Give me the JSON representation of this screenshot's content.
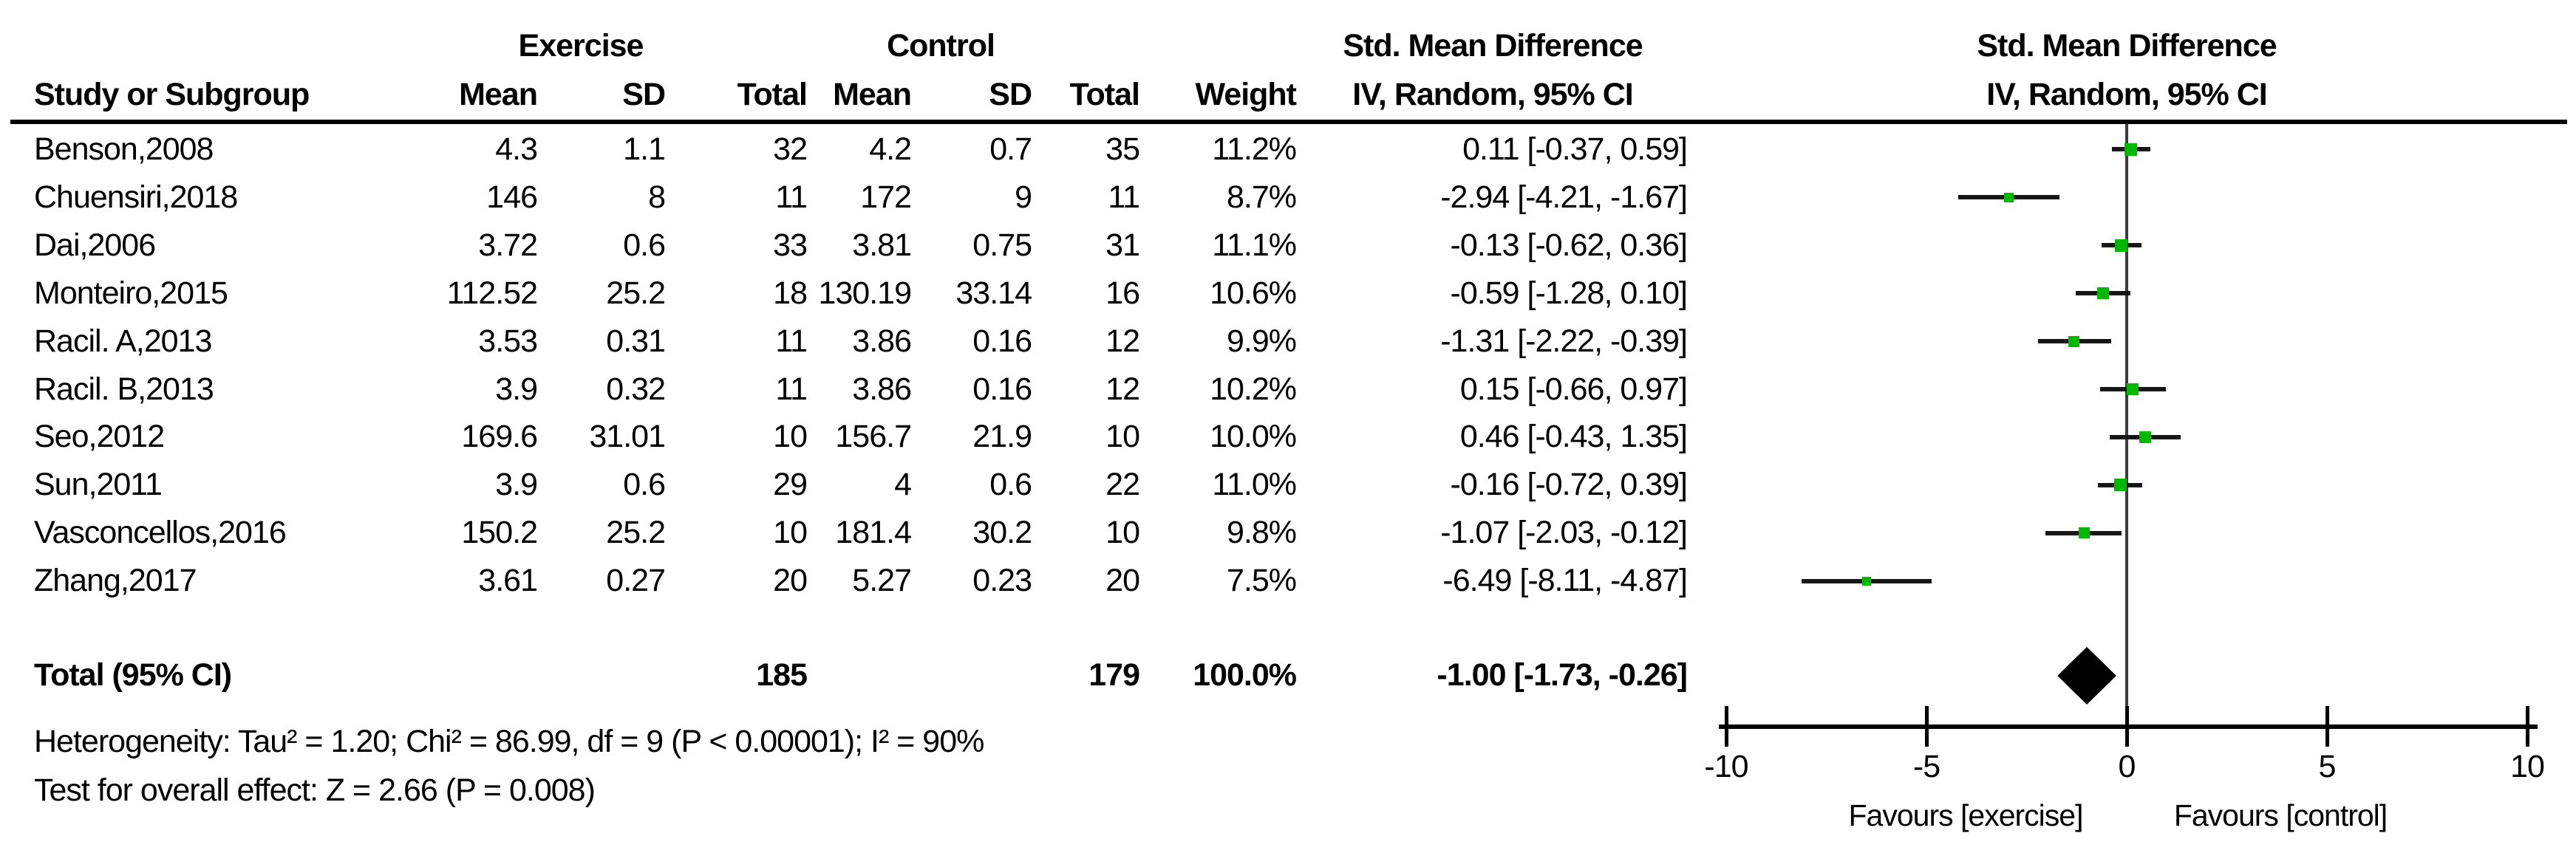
{
  "header": {
    "group_exercise": "Exercise",
    "group_control": "Control",
    "smd_text_title": "Std. Mean Difference",
    "smd_plot_title": "Std. Mean Difference",
    "col_study": "Study or Subgroup",
    "col_mean_ex": "Mean",
    "col_sd_ex": "SD",
    "col_total_ex": "Total",
    "col_mean_c": "Mean",
    "col_sd_c": "SD",
    "col_total_c": "Total",
    "col_weight": "Weight",
    "col_ci_text": "IV, Random, 95% CI",
    "col_ci_plot": "IV, Random, 95% CI"
  },
  "studies": [
    {
      "name": "Benson,2008",
      "ex_mean": "4.3",
      "ex_sd": "1.1",
      "ex_total": "32",
      "c_mean": "4.2",
      "c_sd": "0.7",
      "c_total": "35",
      "weight": "11.2%",
      "ci": "0.11 [-0.37, 0.59]",
      "est": 0.11,
      "lo": -0.37,
      "hi": 0.59
    },
    {
      "name": "Chuensiri,2018",
      "ex_mean": "146",
      "ex_sd": "8",
      "ex_total": "11",
      "c_mean": "172",
      "c_sd": "9",
      "c_total": "11",
      "weight": "8.7%",
      "ci": "-2.94 [-4.21, -1.67]",
      "est": -2.94,
      "lo": -4.21,
      "hi": -1.67
    },
    {
      "name": "Dai,2006",
      "ex_mean": "3.72",
      "ex_sd": "0.6",
      "ex_total": "33",
      "c_mean": "3.81",
      "c_sd": "0.75",
      "c_total": "31",
      "weight": "11.1%",
      "ci": "-0.13 [-0.62, 0.36]",
      "est": -0.13,
      "lo": -0.62,
      "hi": 0.36
    },
    {
      "name": "Monteiro,2015",
      "ex_mean": "112.52",
      "ex_sd": "25.2",
      "ex_total": "18",
      "c_mean": "130.19",
      "c_sd": "33.14",
      "c_total": "16",
      "weight": "10.6%",
      "ci": "-0.59 [-1.28, 0.10]",
      "est": -0.59,
      "lo": -1.28,
      "hi": 0.1
    },
    {
      "name": "Racil. A,2013",
      "ex_mean": "3.53",
      "ex_sd": "0.31",
      "ex_total": "11",
      "c_mean": "3.86",
      "c_sd": "0.16",
      "c_total": "12",
      "weight": "9.9%",
      "ci": "-1.31 [-2.22, -0.39]",
      "est": -1.31,
      "lo": -2.22,
      "hi": -0.39
    },
    {
      "name": "Racil. B,2013",
      "ex_mean": "3.9",
      "ex_sd": "0.32",
      "ex_total": "11",
      "c_mean": "3.86",
      "c_sd": "0.16",
      "c_total": "12",
      "weight": "10.2%",
      "ci": "0.15 [-0.66, 0.97]",
      "est": 0.15,
      "lo": -0.66,
      "hi": 0.97
    },
    {
      "name": "Seo,2012",
      "ex_mean": "169.6",
      "ex_sd": "31.01",
      "ex_total": "10",
      "c_mean": "156.7",
      "c_sd": "21.9",
      "c_total": "10",
      "weight": "10.0%",
      "ci": "0.46 [-0.43, 1.35]",
      "est": 0.46,
      "lo": -0.43,
      "hi": 1.35
    },
    {
      "name": "Sun,2011",
      "ex_mean": "3.9",
      "ex_sd": "0.6",
      "ex_total": "29",
      "c_mean": "4",
      "c_sd": "0.6",
      "c_total": "22",
      "weight": "11.0%",
      "ci": "-0.16 [-0.72, 0.39]",
      "est": -0.16,
      "lo": -0.72,
      "hi": 0.39
    },
    {
      "name": "Vasconcellos,2016",
      "ex_mean": "150.2",
      "ex_sd": "25.2",
      "ex_total": "10",
      "c_mean": "181.4",
      "c_sd": "30.2",
      "c_total": "10",
      "weight": "9.8%",
      "ci": "-1.07 [-2.03, -0.12]",
      "est": -1.07,
      "lo": -2.03,
      "hi": -0.12
    },
    {
      "name": "Zhang,2017",
      "ex_mean": "3.61",
      "ex_sd": "0.27",
      "ex_total": "20",
      "c_mean": "5.27",
      "c_sd": "0.23",
      "c_total": "20",
      "weight": "7.5%",
      "ci": "-6.49 [-8.11, -4.87]",
      "est": -6.49,
      "lo": -8.11,
      "hi": -4.87
    }
  ],
  "total": {
    "label": "Total (95% CI)",
    "ex_total": "185",
    "c_total": "179",
    "weight": "100.0%",
    "ci": "-1.00 [-1.73, -0.26]",
    "est": -1.0,
    "lo": -1.73,
    "hi": -0.26
  },
  "footer": {
    "heterogeneity": "Heterogeneity: Tau² = 1.20; Chi² = 86.99, df = 9 (P < 0.00001); I² = 90%",
    "overall_effect": "Test for overall effect: Z = 2.66 (P = 0.008)"
  },
  "axis": {
    "tick_labels": [
      "-10",
      "-5",
      "0",
      "5",
      "10"
    ],
    "tick_values": [
      -10,
      -5,
      0,
      5,
      10
    ],
    "min": -10,
    "max": 10,
    "favours_left": "Favours [exercise]",
    "favours_right": "Favours [control]"
  },
  "colors": {
    "square_green": "#00b800",
    "ci_line": "#161616",
    "zero_line": "#3c3c3c",
    "axis": "#000000",
    "diamond": "#000000"
  },
  "chart_data": {
    "type": "scatter",
    "subtype": "forest-plot",
    "title": "Std. Mean Difference",
    "effect_model": "IV, Random, 95% CI",
    "xlabel_left": "Favours [exercise]",
    "xlabel_right": "Favours [control]",
    "xlim": [
      -10,
      10
    ],
    "xticks": [
      -10,
      -5,
      0,
      5,
      10
    ],
    "grid": false,
    "legend_position": "none",
    "categories": [
      "Benson,2008",
      "Chuensiri,2018",
      "Dai,2006",
      "Monteiro,2015",
      "Racil. A,2013",
      "Racil. B,2013",
      "Seo,2012",
      "Sun,2011",
      "Vasconcellos,2016",
      "Zhang,2017"
    ],
    "series": [
      {
        "name": "Std. Mean Difference (point estimate)",
        "values": [
          0.11,
          -2.94,
          -0.13,
          -0.59,
          -1.31,
          0.15,
          0.46,
          -0.16,
          -1.07,
          -6.49
        ]
      },
      {
        "name": "95% CI lower",
        "values": [
          -0.37,
          -4.21,
          -0.62,
          -1.28,
          -2.22,
          -0.66,
          -0.43,
          -0.72,
          -2.03,
          -8.11
        ]
      },
      {
        "name": "95% CI upper",
        "values": [
          0.59,
          -1.67,
          0.36,
          0.1,
          -0.39,
          0.97,
          1.35,
          0.39,
          -0.12,
          -4.87
        ]
      },
      {
        "name": "Weight %",
        "values": [
          11.2,
          8.7,
          11.1,
          10.6,
          9.9,
          10.2,
          10.0,
          11.0,
          9.8,
          7.5
        ]
      }
    ],
    "pooled": {
      "label": "Total (95% CI)",
      "est": -1.0,
      "lo": -1.73,
      "hi": -0.26,
      "weight": 100.0,
      "n_exercise": 185,
      "n_control": 179
    },
    "heterogeneity": {
      "tau2": 1.2,
      "chi2": 86.99,
      "df": 9,
      "p": "< 0.00001",
      "i2": "90%"
    },
    "overall_effect": {
      "z": 2.66,
      "p": 0.008
    }
  }
}
